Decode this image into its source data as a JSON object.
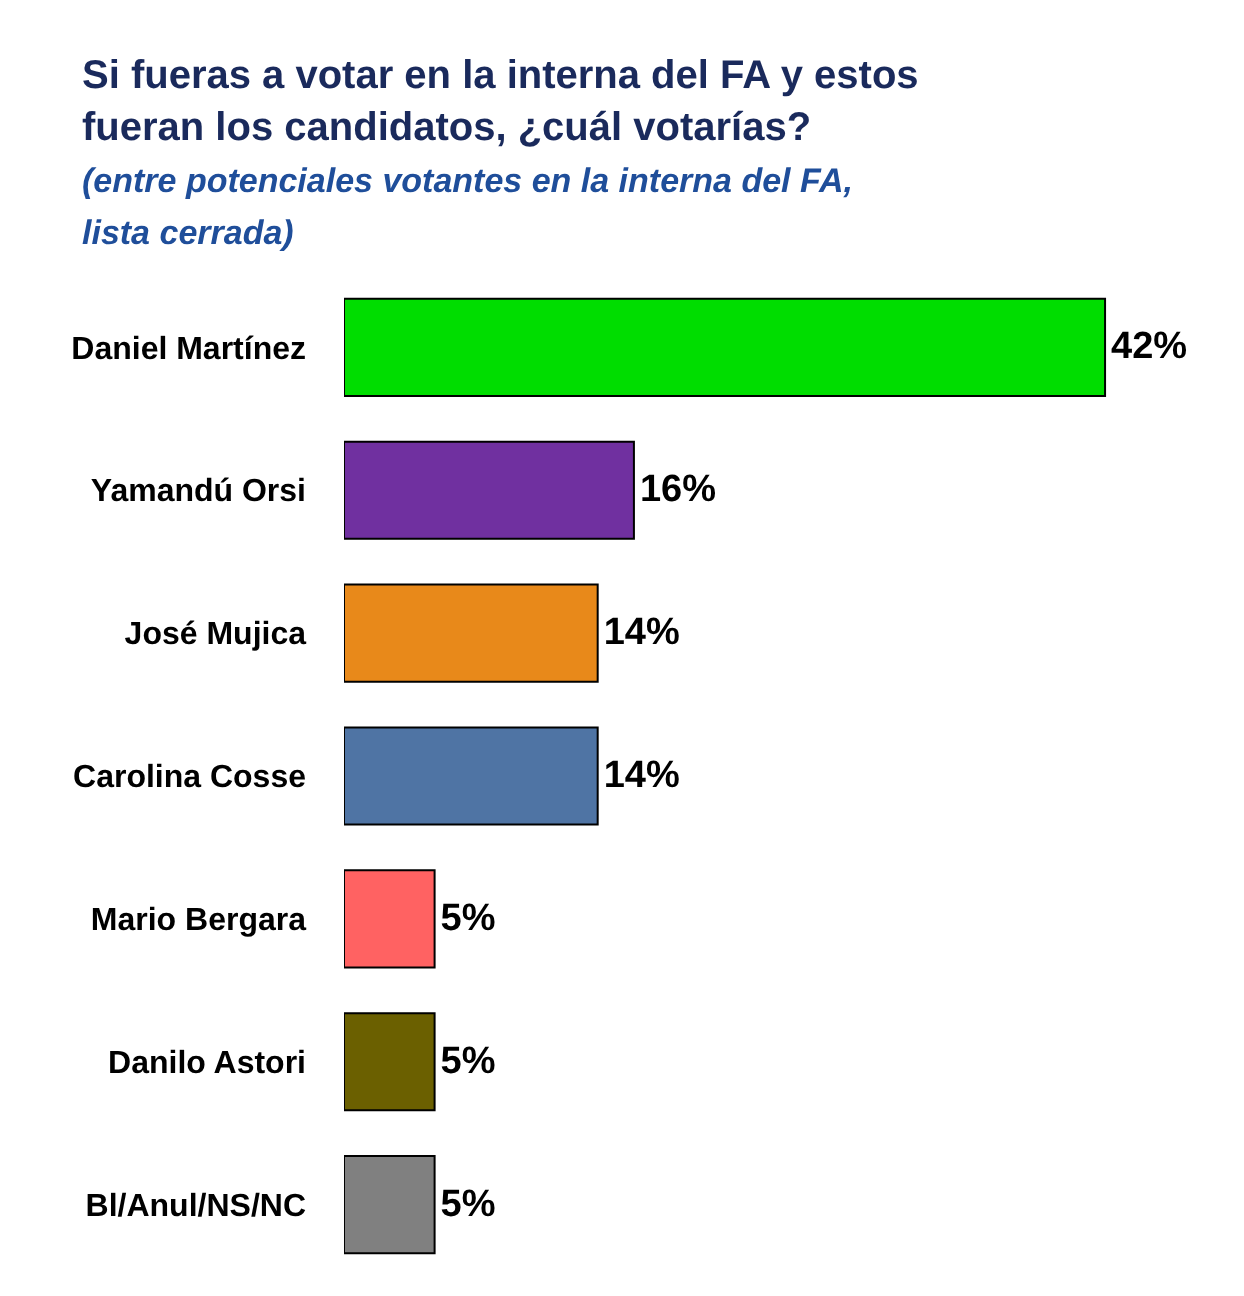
{
  "chart_data": {
    "type": "bar",
    "orientation": "horizontal",
    "title": "Si fueras a votar en la interna del FA y estos fueran los candidatos, ¿cuál votarías?",
    "subtitle": "(entre potenciales votantes en la interna del FA, lista cerrada)",
    "categories": [
      "Daniel Martínez",
      "Yamandú Orsi",
      "José Mujica",
      "Carolina Cosse",
      "Mario Bergara",
      "Danilo Astori",
      "Bl/Anul/NS/NC"
    ],
    "values": [
      42,
      16,
      14,
      14,
      5,
      5,
      5
    ],
    "value_labels": [
      "42%",
      "16%",
      "14%",
      "14%",
      "5%",
      "5%",
      "5%"
    ],
    "colors": [
      "#00dd00",
      "#7030a0",
      "#e8891a",
      "#4f74a4",
      "#ff6262",
      "#6b6000",
      "#808080"
    ]
  }
}
